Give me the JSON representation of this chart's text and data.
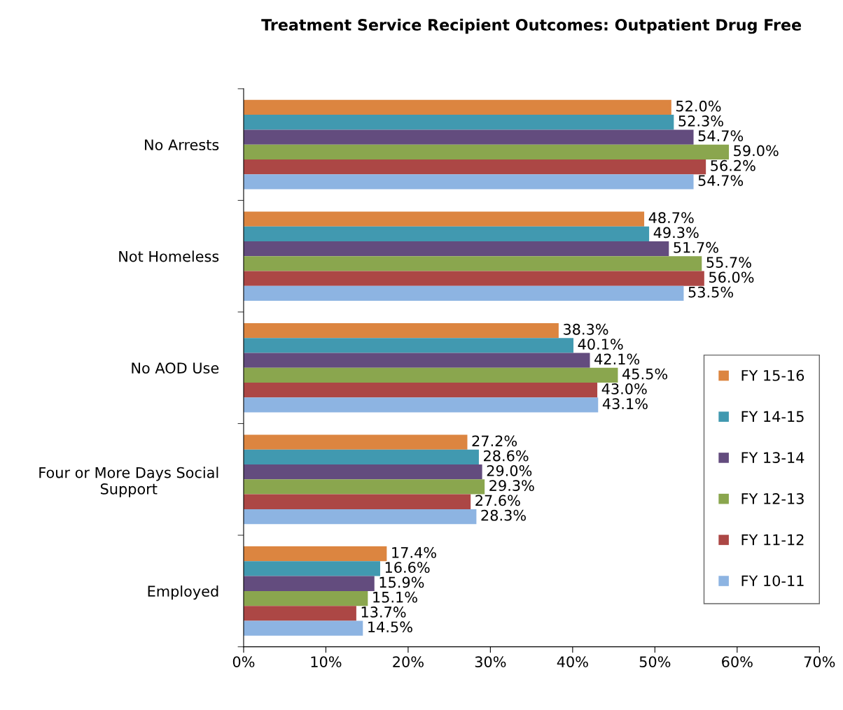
{
  "chart_data": {
    "type": "bar",
    "orientation": "horizontal",
    "title": "Treatment Service Recipient Outcomes: Outpatient Drug Free",
    "categories": [
      "No Arrests",
      "Not Homeless",
      "No AOD Use",
      "Four or More Days Social\nSupport",
      "Employed"
    ],
    "series": [
      {
        "name": "FY 15-16",
        "color": "#dc8540",
        "values": [
          52.0,
          48.7,
          38.3,
          27.2,
          17.4
        ],
        "value_labels": [
          "52.0%",
          "48.7%",
          "38.3%",
          "27.2%",
          "17.4%"
        ]
      },
      {
        "name": "FY 14-15",
        "color": "#4199b0",
        "values": [
          52.3,
          49.3,
          40.1,
          28.6,
          16.6
        ],
        "value_labels": [
          "52.3%",
          "49.3%",
          "40.1%",
          "28.6%",
          "16.6%"
        ]
      },
      {
        "name": "FY 13-14",
        "color": "#634c7e",
        "values": [
          54.7,
          51.7,
          42.1,
          29.0,
          15.9
        ],
        "value_labels": [
          "54.7%",
          "51.7%",
          "42.1%",
          "29.0%",
          "15.9%"
        ]
      },
      {
        "name": "FY 12-13",
        "color": "#8aa64e",
        "values": [
          59.0,
          55.7,
          45.5,
          29.3,
          15.1
        ],
        "value_labels": [
          "59.0%",
          "55.7%",
          "45.5%",
          "29.3%",
          "15.1%"
        ]
      },
      {
        "name": "FY 11-12",
        "color": "#ac4745",
        "values": [
          56.2,
          56.0,
          43.0,
          27.6,
          13.7
        ],
        "value_labels": [
          "56.2%",
          "56.0%",
          "43.0%",
          "27.6%",
          "13.7%"
        ]
      },
      {
        "name": "FY 10-11",
        "color": "#8db4e2",
        "values": [
          54.7,
          53.5,
          43.1,
          28.3,
          14.5
        ],
        "value_labels": [
          "54.7%",
          "53.5%",
          "43.1%",
          "28.3%",
          "14.5%"
        ]
      }
    ],
    "xlim": [
      0,
      70
    ],
    "xticks": [
      {
        "value": 0,
        "label": "0%"
      },
      {
        "value": 10,
        "label": "10%"
      },
      {
        "value": 20,
        "label": "20%"
      },
      {
        "value": 30,
        "label": "30%"
      },
      {
        "value": 40,
        "label": "40%"
      },
      {
        "value": 50,
        "label": "50%"
      },
      {
        "value": 60,
        "label": "60%"
      },
      {
        "value": 70,
        "label": "70%"
      }
    ],
    "grid": false,
    "legend": "right"
  }
}
